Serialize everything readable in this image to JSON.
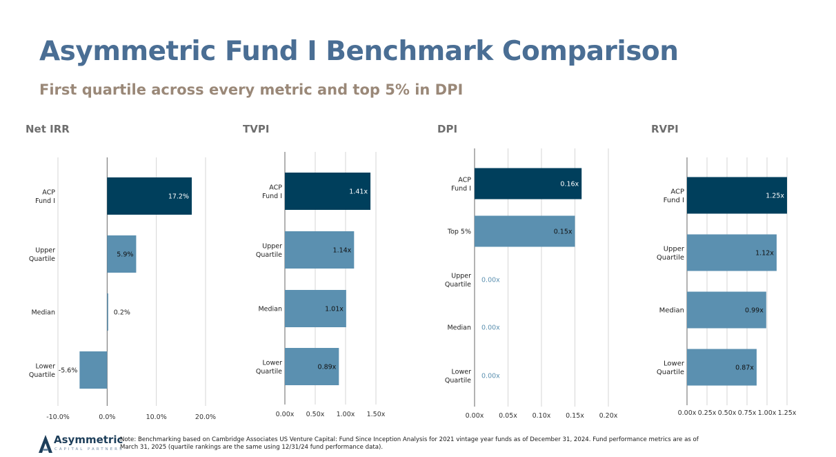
{
  "title": "Asymmetric Fund I Benchmark Comparison",
  "subtitle": "First quartile across every metric and top 5% in DPI",
  "colors": {
    "title": "#4a6e94",
    "subtitle": "#9a8878",
    "highlight": "#003f5c",
    "benchmark": "#5b90b0",
    "zero_label": "#5b90b0"
  },
  "chart_data": [
    {
      "type": "bar",
      "orientation": "horizontal",
      "title": "Net IRR",
      "categories": [
        "ACP\nFund I",
        "Upper\nQuartile",
        "Median",
        "Lower\nQuartile"
      ],
      "values": [
        17.2,
        5.9,
        0.2,
        -5.6
      ],
      "labels": [
        "17.2%",
        "5.9%",
        "0.2%",
        "-5.6%"
      ],
      "xlim": [
        -10,
        20
      ],
      "ticks": [
        -10,
        0,
        10,
        20
      ],
      "tick_labels": [
        "-10.0%",
        "0.0%",
        "10.0%",
        "20.0%"
      ]
    },
    {
      "type": "bar",
      "orientation": "horizontal",
      "title": "TVPI",
      "categories": [
        "ACP\nFund I",
        "Upper\nQuartile",
        "Median",
        "Lower\nQuartile"
      ],
      "values": [
        1.41,
        1.14,
        1.01,
        0.89
      ],
      "labels": [
        "1.41x",
        "1.14x",
        "1.01x",
        "0.89x"
      ],
      "xlim": [
        0,
        1.5
      ],
      "ticks": [
        0,
        0.5,
        1.0,
        1.5
      ],
      "tick_labels": [
        "0.00x",
        "0.50x",
        "1.00x",
        "1.50x"
      ]
    },
    {
      "type": "bar",
      "orientation": "horizontal",
      "title": "DPI",
      "categories": [
        "ACP\nFund I",
        "Top 5%",
        "Upper\nQuartile",
        "Median",
        "Lower\nQuartile"
      ],
      "values": [
        0.16,
        0.15,
        0.0,
        0.0,
        0.0
      ],
      "labels": [
        "0.16x",
        "0.15x",
        "0.00x",
        "0.00x",
        "0.00x"
      ],
      "xlim": [
        0,
        0.2
      ],
      "ticks": [
        0,
        0.05,
        0.1,
        0.15,
        0.2
      ],
      "tick_labels": [
        "0.00x",
        "0.05x",
        "0.10x",
        "0.15x",
        "0.20x"
      ]
    },
    {
      "type": "bar",
      "orientation": "horizontal",
      "title": "RVPI",
      "categories": [
        "ACP\nFund I",
        "Upper\nQuartile",
        "Median",
        "Lower\nQuartile"
      ],
      "values": [
        1.25,
        1.12,
        0.99,
        0.87
      ],
      "labels": [
        "1.25x",
        "1.12x",
        "0.99x",
        "0.87x"
      ],
      "xlim": [
        0,
        1.25
      ],
      "ticks": [
        0,
        0.25,
        0.5,
        0.75,
        1.0,
        1.25
      ],
      "tick_labels": [
        "0.00x",
        "0.25x",
        "0.50x",
        "0.75x",
        "1.00x",
        "1.25x"
      ]
    }
  ],
  "footer": {
    "logo_name": "Asymmetric",
    "logo_tagline": "CAPITAL PARTNERS",
    "logo_icon": "asymmetric-a-mark-icon",
    "note": "Note: Benchmarking based on Cambridge Associates US Venture Capital: Fund Since Inception Analysis for 2021 vintage year funds as of December 31, 2024. Fund performance metrics are as of March 31, 2025 (quartile rankings are the same using 12/31/24 fund performance data)."
  }
}
